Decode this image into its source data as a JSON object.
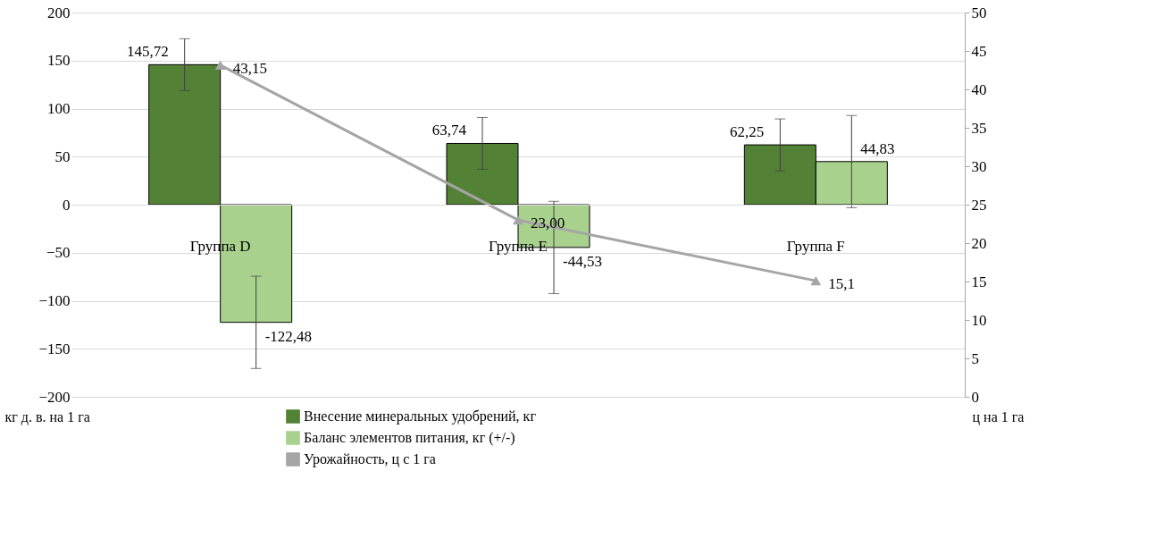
{
  "chart_data": {
    "type": "bar",
    "categories": [
      "Группа D",
      "Группа E",
      "Группа F"
    ],
    "series": [
      {
        "name": "Внесение минеральных удобрений, кг",
        "color": "#538135",
        "values": [
          145.72,
          63.74,
          62.25
        ],
        "errors": [
          27,
          27,
          27
        ],
        "value_labels": [
          "145,72",
          "63,74",
          "62,25"
        ]
      },
      {
        "name": "Баланс элементов питания, кг (+/-)",
        "color": "#a9d18e",
        "values": [
          -122.48,
          -44.53,
          44.83
        ],
        "errors": [
          48,
          48,
          48
        ],
        "value_labels": [
          "-122,48",
          "-44,53",
          "44,83"
        ]
      },
      {
        "name": "Урожайность, ц с 1 га",
        "type": "line",
        "axis": "y2",
        "color": "#a5a5a5",
        "marker": "triangle",
        "values": [
          43.15,
          23.0,
          15.1
        ],
        "value_labels": [
          "43,15",
          "23,00",
          "15,1"
        ]
      }
    ],
    "ylabel": "кг д. в. на 1 га",
    "y2label": "ц на 1 га",
    "ylim": [
      -200,
      200
    ],
    "yticks": [
      -200,
      -150,
      -100,
      -50,
      0,
      50,
      100,
      150,
      200
    ],
    "y2lim": [
      0,
      50
    ],
    "y2ticks": [
      0,
      5,
      10,
      15,
      20,
      25,
      30,
      35,
      40,
      45,
      50
    ],
    "grid": "y",
    "legend": "bottom"
  }
}
